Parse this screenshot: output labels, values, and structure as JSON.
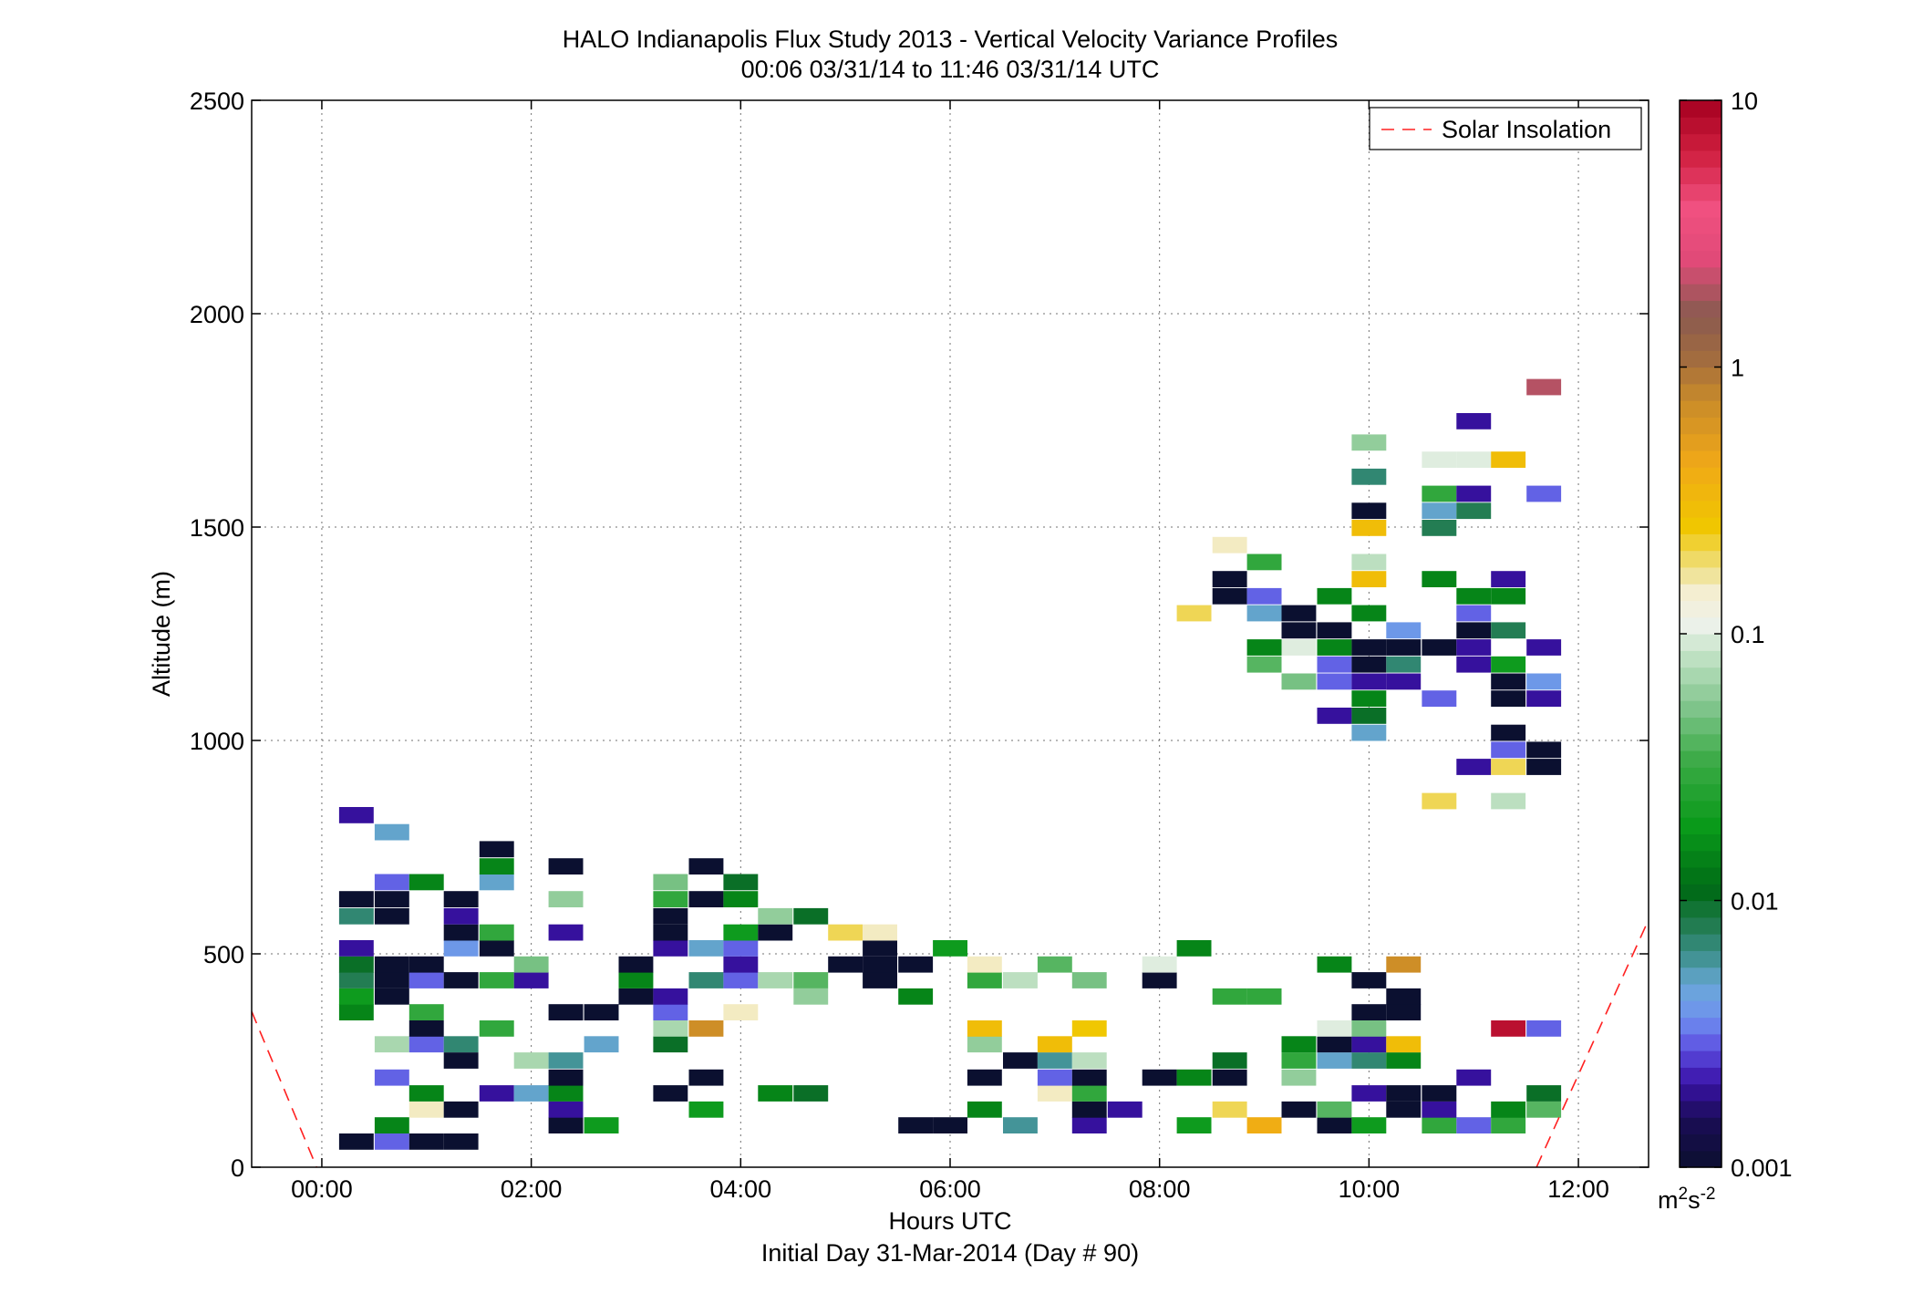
{
  "chart_data": {
    "type": "heatmap",
    "title": "HALO Indianapolis Flux Study 2013 - Vertical Velocity Variance Profiles",
    "subtitle": "00:06 03/31/14 to 11:46 03/31/14  UTC",
    "xlabel": "Hours UTC",
    "xlabel2": "Initial Day 31-Mar-2014 (Day # 90)",
    "ylabel": "Altitude (m)",
    "xlim": [
      -0.67,
      12.67
    ],
    "ylim": [
      0,
      2500
    ],
    "x_ticks": [
      0,
      2,
      4,
      6,
      8,
      10,
      12
    ],
    "x_tick_labels": [
      "00:00",
      "02:00",
      "04:00",
      "06:00",
      "08:00",
      "10:00",
      "12:00"
    ],
    "y_ticks": [
      0,
      500,
      1000,
      1500,
      2000,
      2500
    ],
    "y_tick_labels": [
      "0",
      "500",
      "1000",
      "1500",
      "2000",
      "2500"
    ],
    "grid": true,
    "legend": {
      "position": "top-right",
      "entries": [
        {
          "label": "Solar Insolation",
          "color": "#ff2020",
          "style": "dashed"
        }
      ]
    },
    "colorbar": {
      "scale": "log",
      "range": [
        0.001,
        10
      ],
      "ticks": [
        0.001,
        0.01,
        0.1,
        1,
        10
      ],
      "tick_labels": [
        "0.001",
        "0.01",
        "0.1",
        "1",
        "10"
      ],
      "unit_base": "m",
      "unit_sup1": "2",
      "unit_mid": "s",
      "unit_sup2": "-2",
      "stops": [
        [
          0.0,
          "#0b1030"
        ],
        [
          0.045,
          "#1a0d55"
        ],
        [
          0.08,
          "#3a12a8"
        ],
        [
          0.11,
          "#5c4de0"
        ],
        [
          0.14,
          "#6f90f0"
        ],
        [
          0.17,
          "#6aa8d8"
        ],
        [
          0.2,
          "#3c8f8a"
        ],
        [
          0.23,
          "#1f7a4a"
        ],
        [
          0.26,
          "#006a16"
        ],
        [
          0.32,
          "#0a9a1a"
        ],
        [
          0.38,
          "#3aaa45"
        ],
        [
          0.43,
          "#7ec48a"
        ],
        [
          0.48,
          "#c2e2c5"
        ],
        [
          0.51,
          "#eef2ec"
        ],
        [
          0.54,
          "#f4eed0"
        ],
        [
          0.56,
          "#efe08a"
        ],
        [
          0.6,
          "#f0c700"
        ],
        [
          0.66,
          "#f0a818"
        ],
        [
          0.72,
          "#c88a2a"
        ],
        [
          0.76,
          "#a06a40"
        ],
        [
          0.8,
          "#8a5a50"
        ],
        [
          0.85,
          "#e04a78"
        ],
        [
          0.9,
          "#f05080"
        ],
        [
          0.95,
          "#d02040"
        ],
        [
          1.0,
          "#a50020"
        ]
      ]
    },
    "bin_height_m": 38,
    "bin_width_h": 0.33,
    "cells": [
      [
        0.33,
        60,
        0.001
      ],
      [
        0.67,
        60,
        0.003
      ],
      [
        1.0,
        60,
        0.001
      ],
      [
        1.33,
        60,
        0.001
      ],
      [
        0.67,
        98,
        0.015
      ],
      [
        2.33,
        98,
        0.001
      ],
      [
        2.67,
        98,
        0.02
      ],
      [
        5.67,
        98,
        0.001
      ],
      [
        6.0,
        98,
        0.001
      ],
      [
        6.67,
        98,
        0.006
      ],
      [
        7.33,
        98,
        0.002
      ],
      [
        8.33,
        98,
        0.02
      ],
      [
        9.0,
        98,
        0.4
      ],
      [
        9.67,
        98,
        0.001
      ],
      [
        10.0,
        98,
        0.02
      ],
      [
        10.67,
        98,
        0.03
      ],
      [
        11.0,
        98,
        0.003
      ],
      [
        11.33,
        98,
        0.03
      ],
      [
        1.0,
        135,
        0.15
      ],
      [
        1.33,
        135,
        0.001
      ],
      [
        2.33,
        135,
        0.002
      ],
      [
        3.67,
        135,
        0.02
      ],
      [
        6.33,
        135,
        0.015
      ],
      [
        7.33,
        135,
        0.001
      ],
      [
        7.67,
        135,
        0.002
      ],
      [
        8.67,
        135,
        0.2
      ],
      [
        9.33,
        135,
        0.001
      ],
      [
        9.67,
        135,
        0.04
      ],
      [
        10.33,
        135,
        0.001
      ],
      [
        10.67,
        135,
        0.002
      ],
      [
        11.33,
        135,
        0.015
      ],
      [
        11.67,
        135,
        0.04
      ],
      [
        1.0,
        173,
        0.015
      ],
      [
        1.67,
        173,
        0.002
      ],
      [
        2.0,
        173,
        0.005
      ],
      [
        2.33,
        173,
        0.015
      ],
      [
        3.33,
        173,
        0.001
      ],
      [
        4.33,
        173,
        0.015
      ],
      [
        4.67,
        173,
        0.01
      ],
      [
        7.0,
        173,
        0.15
      ],
      [
        7.33,
        173,
        0.03
      ],
      [
        10.0,
        173,
        0.002
      ],
      [
        10.33,
        173,
        0.001
      ],
      [
        10.67,
        173,
        0.001
      ],
      [
        11.67,
        173,
        0.01
      ],
      [
        0.67,
        210,
        0.003
      ],
      [
        2.33,
        210,
        0.001
      ],
      [
        3.67,
        210,
        0.001
      ],
      [
        6.33,
        210,
        0.001
      ],
      [
        7.0,
        210,
        0.003
      ],
      [
        7.33,
        210,
        0.001
      ],
      [
        8.0,
        210,
        0.001
      ],
      [
        8.33,
        210,
        0.015
      ],
      [
        8.67,
        210,
        0.001
      ],
      [
        9.33,
        210,
        0.06
      ],
      [
        11.0,
        210,
        0.002
      ],
      [
        1.33,
        250,
        0.001
      ],
      [
        2.0,
        250,
        0.07
      ],
      [
        2.33,
        250,
        0.006
      ],
      [
        6.67,
        250,
        0.001
      ],
      [
        7.0,
        250,
        0.006
      ],
      [
        7.33,
        250,
        0.08
      ],
      [
        8.67,
        250,
        0.01
      ],
      [
        9.33,
        250,
        0.03
      ],
      [
        9.67,
        250,
        0.005
      ],
      [
        10.0,
        250,
        0.007
      ],
      [
        10.33,
        250,
        0.015
      ],
      [
        0.67,
        288,
        0.07
      ],
      [
        1.0,
        288,
        0.003
      ],
      [
        1.33,
        288,
        0.007
      ],
      [
        2.67,
        288,
        0.005
      ],
      [
        3.33,
        288,
        0.01
      ],
      [
        6.33,
        288,
        0.06
      ],
      [
        7.0,
        288,
        0.3
      ],
      [
        9.33,
        288,
        0.015
      ],
      [
        9.67,
        288,
        0.001
      ],
      [
        10.0,
        288,
        0.002
      ],
      [
        10.33,
        288,
        0.3
      ],
      [
        1.0,
        325,
        0.001
      ],
      [
        1.67,
        325,
        0.03
      ],
      [
        3.33,
        325,
        0.07
      ],
      [
        3.67,
        325,
        0.7
      ],
      [
        6.33,
        325,
        0.3
      ],
      [
        7.33,
        325,
        0.25
      ],
      [
        9.67,
        325,
        0.1
      ],
      [
        10.0,
        325,
        0.05
      ],
      [
        11.33,
        325,
        8
      ],
      [
        11.67,
        325,
        0.003
      ],
      [
        0.33,
        363,
        0.015
      ],
      [
        1.0,
        363,
        0.03
      ],
      [
        2.33,
        363,
        0.001
      ],
      [
        2.67,
        363,
        0.001
      ],
      [
        3.33,
        363,
        0.003
      ],
      [
        4.0,
        363,
        0.15
      ],
      [
        10.0,
        363,
        0.001
      ],
      [
        10.33,
        363,
        0.001
      ],
      [
        0.33,
        400,
        0.02
      ],
      [
        0.67,
        400,
        0.001
      ],
      [
        3.0,
        400,
        0.001
      ],
      [
        3.33,
        400,
        0.002
      ],
      [
        4.67,
        400,
        0.06
      ],
      [
        5.67,
        400,
        0.015
      ],
      [
        8.67,
        400,
        0.03
      ],
      [
        9.0,
        400,
        0.03
      ],
      [
        10.33,
        400,
        0.001
      ],
      [
        0.33,
        438,
        0.008
      ],
      [
        0.67,
        438,
        0.001
      ],
      [
        1.0,
        438,
        0.003
      ],
      [
        1.33,
        438,
        0.001
      ],
      [
        1.67,
        438,
        0.03
      ],
      [
        2.0,
        438,
        0.002
      ],
      [
        3.0,
        438,
        0.015
      ],
      [
        3.67,
        438,
        0.007
      ],
      [
        4.0,
        438,
        0.003
      ],
      [
        4.33,
        438,
        0.07
      ],
      [
        4.67,
        438,
        0.04
      ],
      [
        5.33,
        438,
        0.001
      ],
      [
        6.33,
        438,
        0.03
      ],
      [
        6.67,
        438,
        0.08
      ],
      [
        7.33,
        438,
        0.05
      ],
      [
        8.0,
        438,
        0.001
      ],
      [
        10.0,
        438,
        0.001
      ],
      [
        0.33,
        475,
        0.01
      ],
      [
        0.67,
        475,
        0.001
      ],
      [
        1.0,
        475,
        0.001
      ],
      [
        2.0,
        475,
        0.05
      ],
      [
        3.0,
        475,
        0.001
      ],
      [
        4.0,
        475,
        0.002
      ],
      [
        5.0,
        475,
        0.001
      ],
      [
        5.33,
        475,
        0.001
      ],
      [
        5.67,
        475,
        0.001
      ],
      [
        6.33,
        475,
        0.15
      ],
      [
        7.0,
        475,
        0.04
      ],
      [
        8.0,
        475,
        0.1
      ],
      [
        9.67,
        475,
        0.015
      ],
      [
        10.33,
        475,
        0.7
      ],
      [
        0.33,
        513,
        0.002
      ],
      [
        1.33,
        513,
        0.004
      ],
      [
        1.67,
        513,
        0.001
      ],
      [
        3.33,
        513,
        0.002
      ],
      [
        3.67,
        513,
        0.005
      ],
      [
        4.0,
        513,
        0.003
      ],
      [
        5.33,
        513,
        0.001
      ],
      [
        6.0,
        513,
        0.02
      ],
      [
        8.33,
        513,
        0.015
      ],
      [
        1.33,
        550,
        0.001
      ],
      [
        1.67,
        550,
        0.03
      ],
      [
        2.33,
        550,
        0.002
      ],
      [
        3.33,
        550,
        0.001
      ],
      [
        4.0,
        550,
        0.02
      ],
      [
        4.33,
        550,
        0.001
      ],
      [
        5.0,
        550,
        0.2
      ],
      [
        5.33,
        550,
        0.15
      ],
      [
        0.33,
        588,
        0.007
      ],
      [
        0.67,
        588,
        0.001
      ],
      [
        1.33,
        588,
        0.002
      ],
      [
        3.33,
        588,
        0.001
      ],
      [
        4.33,
        588,
        0.06
      ],
      [
        4.67,
        588,
        0.01
      ],
      [
        0.33,
        628,
        0.001
      ],
      [
        0.67,
        628,
        0.001
      ],
      [
        1.33,
        628,
        0.001
      ],
      [
        2.33,
        628,
        0.06
      ],
      [
        3.33,
        628,
        0.03
      ],
      [
        3.67,
        628,
        0.001
      ],
      [
        4.0,
        628,
        0.015
      ],
      [
        0.67,
        668,
        0.003
      ],
      [
        1.0,
        668,
        0.015
      ],
      [
        1.67,
        668,
        0.005
      ],
      [
        3.33,
        668,
        0.05
      ],
      [
        4.0,
        668,
        0.01
      ],
      [
        1.67,
        705,
        0.015
      ],
      [
        2.33,
        705,
        0.001
      ],
      [
        3.67,
        705,
        0.001
      ],
      [
        1.67,
        745,
        0.001
      ],
      [
        0.67,
        785,
        0.005
      ],
      [
        0.33,
        825,
        0.002
      ],
      [
        10.67,
        858,
        0.2
      ],
      [
        11.33,
        858,
        0.08
      ],
      [
        11.0,
        938,
        0.002
      ],
      [
        11.33,
        938,
        0.2
      ],
      [
        11.67,
        938,
        0.001
      ],
      [
        11.33,
        978,
        0.003
      ],
      [
        11.67,
        978,
        0.001
      ],
      [
        10.0,
        1018,
        0.005
      ],
      [
        11.33,
        1018,
        0.001
      ],
      [
        9.67,
        1058,
        0.002
      ],
      [
        10.0,
        1058,
        0.01
      ],
      [
        10.0,
        1098,
        0.015
      ],
      [
        10.67,
        1098,
        0.003
      ],
      [
        11.33,
        1098,
        0.001
      ],
      [
        11.67,
        1098,
        0.002
      ],
      [
        9.33,
        1138,
        0.05
      ],
      [
        9.67,
        1138,
        0.003
      ],
      [
        10.0,
        1138,
        0.002
      ],
      [
        10.33,
        1138,
        0.002
      ],
      [
        11.33,
        1138,
        0.001
      ],
      [
        11.67,
        1138,
        0.004
      ],
      [
        9.0,
        1178,
        0.04
      ],
      [
        9.67,
        1178,
        0.003
      ],
      [
        10.0,
        1178,
        0.001
      ],
      [
        10.33,
        1178,
        0.007
      ],
      [
        11.0,
        1178,
        0.002
      ],
      [
        11.33,
        1178,
        0.02
      ],
      [
        9.0,
        1218,
        0.015
      ],
      [
        9.33,
        1218,
        0.1
      ],
      [
        9.67,
        1218,
        0.015
      ],
      [
        10.0,
        1218,
        0.001
      ],
      [
        10.33,
        1218,
        0.001
      ],
      [
        10.67,
        1218,
        0.001
      ],
      [
        11.0,
        1218,
        0.002
      ],
      [
        11.67,
        1218,
        0.002
      ],
      [
        9.33,
        1258,
        0.001
      ],
      [
        9.67,
        1258,
        0.001
      ],
      [
        10.33,
        1258,
        0.004
      ],
      [
        11.0,
        1258,
        0.001
      ],
      [
        11.33,
        1258,
        0.008
      ],
      [
        8.33,
        1298,
        0.2
      ],
      [
        9.0,
        1298,
        0.005
      ],
      [
        9.33,
        1298,
        0.001
      ],
      [
        10.0,
        1298,
        0.015
      ],
      [
        11.0,
        1298,
        0.003
      ],
      [
        8.67,
        1338,
        0.001
      ],
      [
        9.0,
        1338,
        0.003
      ],
      [
        9.67,
        1338,
        0.015
      ],
      [
        11.0,
        1338,
        0.015
      ],
      [
        11.33,
        1338,
        0.015
      ],
      [
        8.67,
        1378,
        0.001
      ],
      [
        10.0,
        1378,
        0.3
      ],
      [
        10.67,
        1378,
        0.015
      ],
      [
        11.33,
        1378,
        0.002
      ],
      [
        9.0,
        1418,
        0.03
      ],
      [
        10.0,
        1418,
        0.08
      ],
      [
        8.67,
        1458,
        0.15
      ],
      [
        10.0,
        1498,
        0.3
      ],
      [
        10.67,
        1498,
        0.008
      ],
      [
        10.0,
        1538,
        0.001
      ],
      [
        10.67,
        1538,
        0.005
      ],
      [
        11.0,
        1538,
        0.008
      ],
      [
        10.67,
        1578,
        0.03
      ],
      [
        11.0,
        1578,
        0.002
      ],
      [
        11.67,
        1578,
        0.003
      ],
      [
        10.0,
        1618,
        0.007
      ],
      [
        10.67,
        1658,
        0.1
      ],
      [
        11.0,
        1658,
        0.1
      ],
      [
        11.33,
        1658,
        0.3
      ],
      [
        10.0,
        1698,
        0.06
      ],
      [
        11.0,
        1748,
        0.002
      ],
      [
        11.67,
        1828,
        2
      ]
    ]
  }
}
